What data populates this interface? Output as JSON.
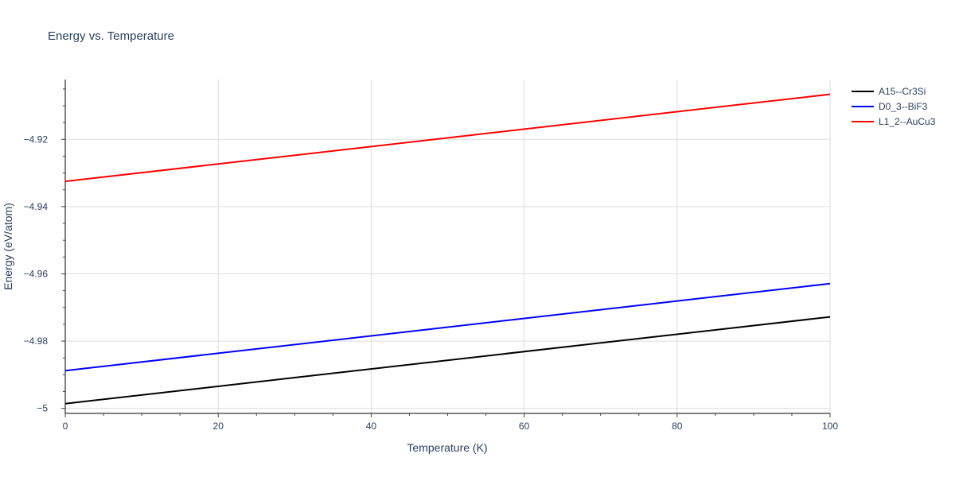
{
  "chart_data": {
    "type": "line",
    "title": "Energy vs. Temperature",
    "xlabel": "Temperature (K)",
    "ylabel": "Energy (eV/atom)",
    "xlim": [
      0,
      100
    ],
    "ylim": [
      -5.0015,
      -4.9022
    ],
    "x_ticks": [
      0,
      20,
      40,
      60,
      80,
      100
    ],
    "x_tick_labels": [
      "0",
      "20",
      "40",
      "60",
      "80",
      "100"
    ],
    "y_ticks": [
      -5.0,
      -4.98,
      -4.96,
      -4.94,
      -4.92
    ],
    "y_tick_labels": [
      "−5",
      "−4.98",
      "−4.96",
      "−4.94",
      "−4.92"
    ],
    "grid": true,
    "legend_position": "top-right",
    "series": [
      {
        "name": "A15--Cr3Si",
        "color": "#000000",
        "x": [
          0,
          100
        ],
        "y": [
          -4.9986,
          -4.9728
        ]
      },
      {
        "name": "D0_3--BiF3",
        "color": "#0000ff",
        "x": [
          0,
          100
        ],
        "y": [
          -4.9888,
          -4.9629
        ]
      },
      {
        "name": "L1_2--AuCu3",
        "color": "#ff0000",
        "x": [
          0,
          100
        ],
        "y": [
          -4.9325,
          -4.9066
        ]
      }
    ]
  }
}
